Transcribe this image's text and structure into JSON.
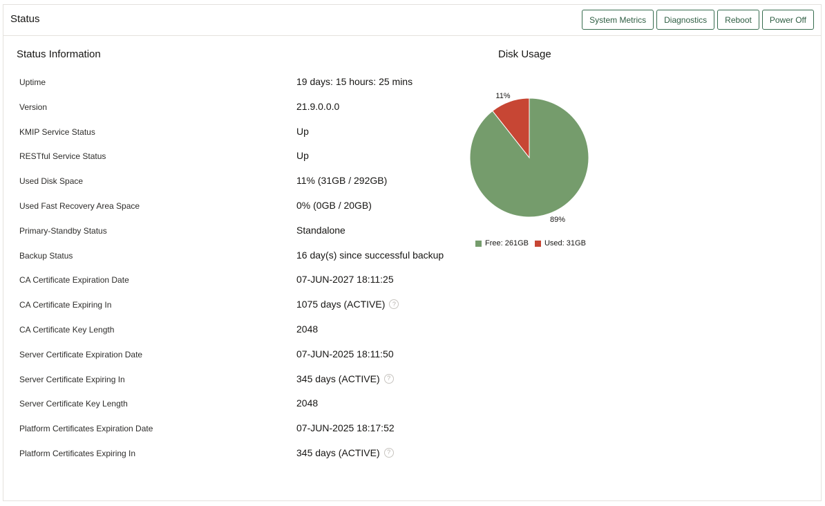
{
  "header": {
    "title": "Status",
    "buttons": {
      "system_metrics": "System Metrics",
      "diagnostics": "Diagnostics",
      "reboot": "Reboot",
      "power_off": "Power Off"
    }
  },
  "status_info": {
    "title": "Status Information",
    "rows": [
      {
        "label": "Uptime",
        "value": "19 days: 15 hours: 25 mins"
      },
      {
        "label": "Version",
        "value": "21.9.0.0.0"
      },
      {
        "label": "KMIP Service Status",
        "value": "Up"
      },
      {
        "label": "RESTful Service Status",
        "value": "Up"
      },
      {
        "label": "Used Disk Space",
        "value": "11% (31GB / 292GB)"
      },
      {
        "label": "Used Fast Recovery Area Space",
        "value": "0% (0GB / 20GB)"
      },
      {
        "label": "Primary-Standby Status",
        "value": "Standalone"
      },
      {
        "label": "Backup Status",
        "value": "16 day(s) since successful backup"
      },
      {
        "label": "CA Certificate Expiration Date",
        "value": "07-JUN-2027 18:11:25"
      },
      {
        "label": "CA Certificate Expiring In",
        "value": "1075 days (ACTIVE)",
        "help_icon": "question-circle-icon"
      },
      {
        "label": "CA Certificate Key Length",
        "value": "2048"
      },
      {
        "label": "Server Certificate Expiration Date",
        "value": "07-JUN-2025 18:11:50"
      },
      {
        "label": "Server Certificate Expiring In",
        "value": "345 days (ACTIVE)",
        "help_icon": "question-circle-icon"
      },
      {
        "label": "Server Certificate Key Length",
        "value": "2048"
      },
      {
        "label": "Platform Certificates Expiration Date",
        "value": "07-JUN-2025 18:17:52"
      },
      {
        "label": "Platform Certificates Expiring In",
        "value": "345 days (ACTIVE)",
        "help_icon": "question-circle-icon"
      }
    ]
  },
  "disk_usage": {
    "title": "Disk Usage"
  },
  "chart_data": {
    "type": "pie",
    "title": "Disk Usage",
    "slices": [
      {
        "name": "Free",
        "value": 261,
        "percent_label": "89%",
        "legend": "Free: 261GB",
        "color": "#759c6c"
      },
      {
        "name": "Used",
        "value": 31,
        "percent_label": "11%",
        "legend": "Used: 31GB",
        "color": "#c74634"
      }
    ],
    "legend_position": "bottom"
  }
}
